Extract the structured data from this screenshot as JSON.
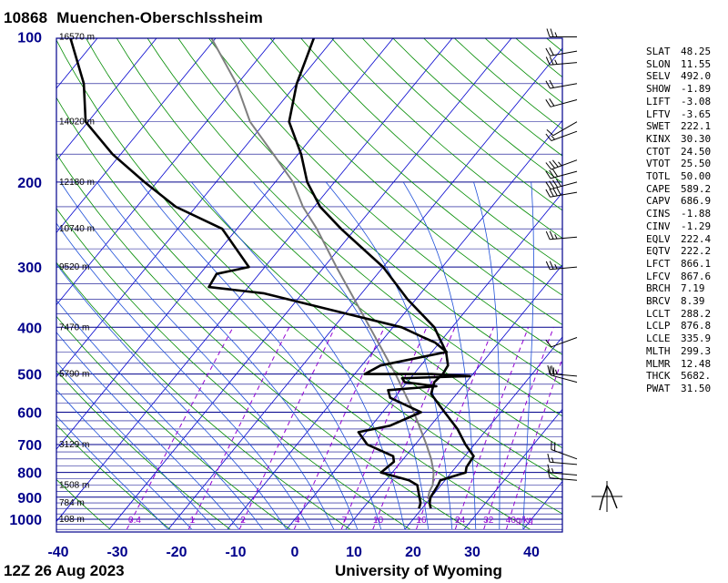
{
  "header": {
    "station_id": "10868",
    "station_name": "Muenchen-Oberschlssheim"
  },
  "footer": {
    "time": "12Z 26 Aug 2023",
    "source": "University of Wyoming"
  },
  "chart_data": {
    "type": "skew-t log-p",
    "pressure_labels": [
      "100",
      "200",
      "300",
      "400",
      "500",
      "600",
      "700",
      "800",
      "900",
      "1000"
    ],
    "pressure_levels": [
      100,
      200,
      300,
      400,
      500,
      600,
      700,
      800,
      900,
      1000
    ],
    "temperature_ticks": [
      "-40",
      "-30",
      "-20",
      "-10",
      "0",
      "10",
      "20",
      "30",
      "40"
    ],
    "height_labels": [
      {
        "p": 100,
        "label": "16570 m"
      },
      {
        "p": 150,
        "label": "14020 m"
      },
      {
        "p": 200,
        "label": "12180 m"
      },
      {
        "p": 250,
        "label": "10740 m"
      },
      {
        "p": 300,
        "label": "9520 m"
      },
      {
        "p": 400,
        "label": "7470 m"
      },
      {
        "p": 500,
        "label": "5790 m"
      },
      {
        "p": 700,
        "label": "3129 m"
      },
      {
        "p": 850,
        "label": "1508 m"
      },
      {
        "p": 925,
        "label": "784 m"
      },
      {
        "p": 1000,
        "label": "108 m"
      }
    ],
    "mixing_ratio_labels": [
      "0.4",
      "1",
      "2",
      "4",
      "7",
      "10",
      "16",
      "24",
      "32",
      "40g/kg"
    ],
    "mixing_ratio_values": [
      0.4,
      1,
      2,
      4,
      7,
      10,
      16,
      24,
      32,
      40
    ],
    "temperature_profile": [
      [
        950,
        21.5
      ],
      [
        925,
        20.5
      ],
      [
        900,
        19.9
      ],
      [
        850,
        19.5
      ],
      [
        830,
        19.2
      ],
      [
        800,
        22.4
      ],
      [
        780,
        21.8
      ],
      [
        740,
        21.5
      ],
      [
        700,
        18.5
      ],
      [
        650,
        15.0
      ],
      [
        600,
        10.5
      ],
      [
        550,
        5.7
      ],
      [
        520,
        4.6
      ],
      [
        500,
        4.9
      ],
      [
        480,
        4.6
      ],
      [
        450,
        2.4
      ],
      [
        400,
        -3.0
      ],
      [
        350,
        -11.4
      ],
      [
        300,
        -20.0
      ],
      [
        250,
        -32.4
      ],
      [
        225,
        -39.0
      ],
      [
        200,
        -44.6
      ],
      [
        175,
        -49.5
      ],
      [
        150,
        -56.0
      ],
      [
        125,
        -60.0
      ],
      [
        110,
        -62.0
      ],
      [
        100,
        -63.5
      ]
    ],
    "dewpoint_profile": [
      [
        950,
        19.5
      ],
      [
        925,
        19.0
      ],
      [
        900,
        18.0
      ],
      [
        850,
        16.0
      ],
      [
        830,
        13.9
      ],
      [
        800,
        8.1
      ],
      [
        760,
        8.8
      ],
      [
        740,
        7.9
      ],
      [
        700,
        1.9
      ],
      [
        660,
        -1.3
      ],
      [
        640,
        3.1
      ],
      [
        600,
        6.5
      ],
      [
        560,
        -0.7
      ],
      [
        540,
        -2.1
      ],
      [
        530,
        5.5
      ],
      [
        520,
        -0.4
      ],
      [
        510,
        -1.4
      ],
      [
        505,
        9.8
      ],
      [
        500,
        3.0
      ],
      [
        500,
        -8.3
      ],
      [
        480,
        -6.8
      ],
      [
        450,
        2.5
      ],
      [
        430,
        -0.8
      ],
      [
        420,
        -3.4
      ],
      [
        400,
        -8.5
      ],
      [
        370,
        -22.0
      ],
      [
        340,
        -36.6
      ],
      [
        330,
        -46.7
      ],
      [
        310,
        -47.2
      ],
      [
        300,
        -42.7
      ],
      [
        250,
        -52.5
      ],
      [
        225,
        -63.4
      ],
      [
        200,
        -72.1
      ],
      [
        175,
        -81.4
      ],
      [
        150,
        -90.4
      ],
      [
        125,
        -96.0
      ],
      [
        100,
        -104.8
      ]
    ],
    "parcel_profile": [
      [
        925,
        20.7
      ],
      [
        900,
        19.5
      ],
      [
        875,
        18.9
      ],
      [
        850,
        18.6
      ],
      [
        800,
        17.0
      ],
      [
        750,
        14.7
      ],
      [
        700,
        11.9
      ],
      [
        600,
        5.3
      ],
      [
        500,
        -3.1
      ],
      [
        400,
        -13.9
      ],
      [
        300,
        -27.9
      ],
      [
        250,
        -36.5
      ],
      [
        225,
        -41.9
      ],
      [
        200,
        -47.0
      ],
      [
        175,
        -54.2
      ],
      [
        150,
        -62.6
      ],
      [
        125,
        -70.2
      ],
      [
        100,
        -81.0
      ]
    ],
    "wind_barbs": [
      {
        "p": 100,
        "dir": 270,
        "speed": 25
      },
      {
        "p": 107,
        "dir": 260,
        "speed": 20
      },
      {
        "p": 113,
        "dir": 265,
        "speed": 25
      },
      {
        "p": 125,
        "dir": 260,
        "speed": 20
      },
      {
        "p": 135,
        "dir": 255,
        "speed": 20
      },
      {
        "p": 150,
        "dir": 240,
        "speed": 10
      },
      {
        "p": 157,
        "dir": 250,
        "speed": 15
      },
      {
        "p": 180,
        "dir": 250,
        "speed": 35
      },
      {
        "p": 190,
        "dir": 255,
        "speed": 30
      },
      {
        "p": 200,
        "dir": 255,
        "speed": 40
      },
      {
        "p": 210,
        "dir": 260,
        "speed": 40
      },
      {
        "p": 260,
        "dir": 265,
        "speed": 25
      },
      {
        "p": 300,
        "dir": 265,
        "speed": 25
      },
      {
        "p": 420,
        "dir": 250,
        "speed": 10
      },
      {
        "p": 505,
        "dir": 275,
        "speed": 25
      },
      {
        "p": 520,
        "dir": 285,
        "speed": 20
      },
      {
        "p": 750,
        "dir": 290,
        "speed": 20
      },
      {
        "p": 770,
        "dir": 275,
        "speed": 15
      },
      {
        "p": 810,
        "dir": 275,
        "speed": 15
      },
      {
        "p": 830,
        "dir": 275,
        "speed": 10
      }
    ],
    "hodograph": true,
    "indices": [
      {
        "k": "SLAT",
        "v": "48.25"
      },
      {
        "k": "SLON",
        "v": "11.55"
      },
      {
        "k": "SELV",
        "v": "492.0"
      },
      {
        "k": "SHOW",
        "v": "-1.89"
      },
      {
        "k": "LIFT",
        "v": "-3.08"
      },
      {
        "k": "LFTV",
        "v": "-3.65"
      },
      {
        "k": "SWET",
        "v": "222.1"
      },
      {
        "k": "KINX",
        "v": "30.30"
      },
      {
        "k": "CTOT",
        "v": "24.50"
      },
      {
        "k": "VTOT",
        "v": "25.50"
      },
      {
        "k": "TOTL",
        "v": "50.00"
      },
      {
        "k": "CAPE",
        "v": "589.2"
      },
      {
        "k": "CAPV",
        "v": "686.9"
      },
      {
        "k": "CINS",
        "v": "-1.88"
      },
      {
        "k": "CINV",
        "v": "-1.29"
      },
      {
        "k": "EQLV",
        "v": "222.4"
      },
      {
        "k": "EQTV",
        "v": "222.2"
      },
      {
        "k": "LFCT",
        "v": "866.1"
      },
      {
        "k": "LFCV",
        "v": "867.6"
      },
      {
        "k": "BRCH",
        "v": "7.19"
      },
      {
        "k": "BRCV",
        "v": "8.39"
      },
      {
        "k": "LCLT",
        "v": "288.2"
      },
      {
        "k": "LCLP",
        "v": "876.8"
      },
      {
        "k": "LCLE",
        "v": "335.9"
      },
      {
        "k": "MLTH",
        "v": "299.3"
      },
      {
        "k": "MLMR",
        "v": "12.48"
      },
      {
        "k": "THCK",
        "v": "5682."
      },
      {
        "k": "PWAT",
        "v": "31.50"
      }
    ],
    "colors": {
      "isobar": "#00008b",
      "isotherm": "#0000cd",
      "dry_adiabat": "#008b00",
      "moist_adiabat": "#1e50d8",
      "mixing_ratio": "#9400d3",
      "temperature": "#000000",
      "dewpoint": "#000000",
      "parcel": "#7f7f7f",
      "pressure_label": "#00008b",
      "temp_tick": "#00008b",
      "mixing_label": "#9400d3"
    }
  }
}
